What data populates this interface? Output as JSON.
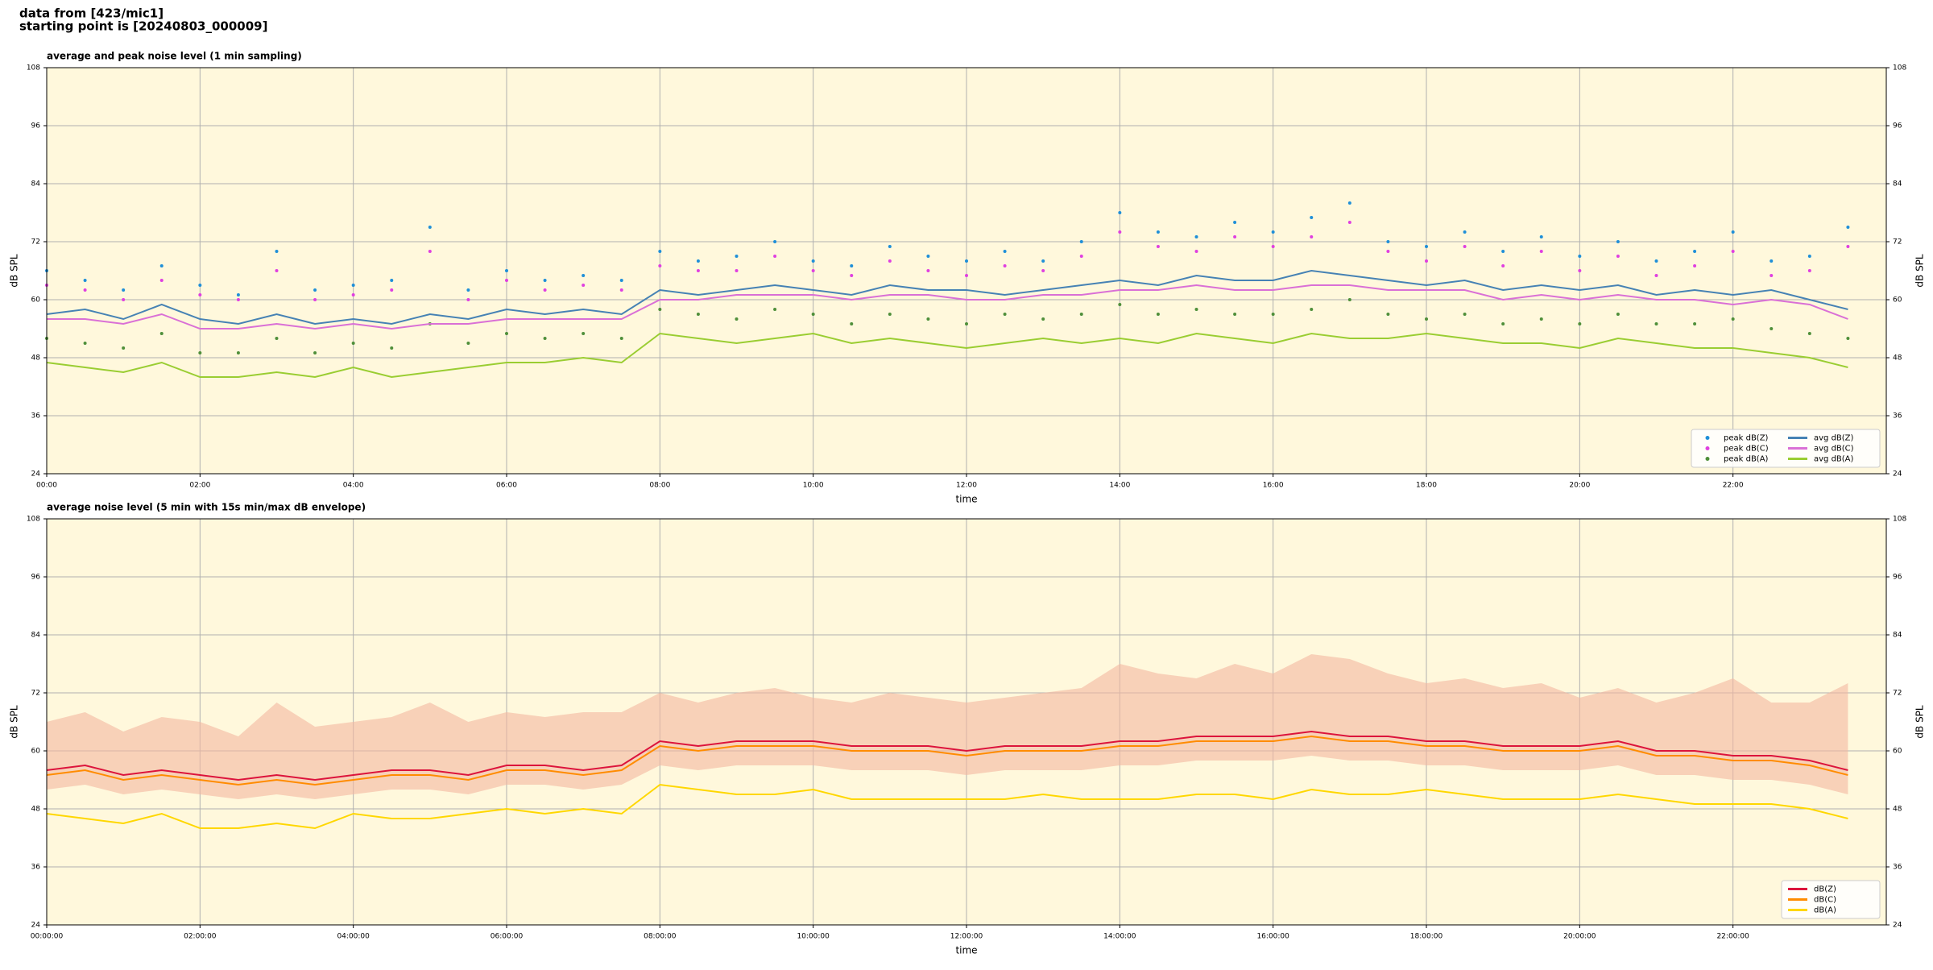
{
  "header": [
    "data from [423/mic1]",
    "starting point is [20240803_000009]"
  ],
  "chart_data": [
    {
      "type": "line",
      "title": "average and peak noise level (1 min sampling)",
      "x_label": "time",
      "y_label": "dB SPL",
      "background": "#fff8dc",
      "grid": true,
      "legend": "lower right",
      "legend_columns": 2,
      "x": [
        0,
        0.5,
        1,
        1.5,
        2,
        2.5,
        3,
        3.5,
        4,
        4.5,
        5,
        5.5,
        6,
        6.5,
        7,
        7.5,
        8,
        8.5,
        9,
        9.5,
        10,
        10.5,
        11,
        11.5,
        12,
        12.5,
        13,
        13.5,
        14,
        14.5,
        15,
        15.5,
        16,
        16.5,
        17,
        17.5,
        18,
        18.5,
        19,
        19.5,
        20,
        20.5,
        21,
        21.5,
        22,
        22.5,
        23,
        23.5
      ],
      "xlim": [
        0,
        24
      ],
      "xticks": [
        {
          "value": 0,
          "label": "00:00"
        },
        {
          "value": 2,
          "label": "02:00"
        },
        {
          "value": 4,
          "label": "04:00"
        },
        {
          "value": 6,
          "label": "06:00"
        },
        {
          "value": 8,
          "label": "08:00"
        },
        {
          "value": 10,
          "label": "10:00"
        },
        {
          "value": 12,
          "label": "12:00"
        },
        {
          "value": 14,
          "label": "14:00"
        },
        {
          "value": 16,
          "label": "16:00"
        },
        {
          "value": 18,
          "label": "18:00"
        },
        {
          "value": 20,
          "label": "20:00"
        },
        {
          "value": 22,
          "label": "22:00"
        }
      ],
      "ylim": [
        24,
        108
      ],
      "yticks": [
        24,
        36,
        48,
        60,
        72,
        84,
        96,
        108
      ],
      "series": [
        {
          "name": "peak dB(Z)",
          "kind": "scatter",
          "color": "#1f8fd8",
          "values": [
            66,
            64,
            62,
            67,
            63,
            61,
            70,
            62,
            63,
            64,
            75,
            62,
            66,
            64,
            65,
            64,
            70,
            68,
            69,
            72,
            68,
            67,
            71,
            69,
            68,
            70,
            68,
            72,
            78,
            74,
            73,
            76,
            74,
            77,
            80,
            72,
            71,
            74,
            70,
            73,
            69,
            72,
            68,
            70,
            74,
            68,
            69,
            75
          ]
        },
        {
          "name": "peak dB(C)",
          "kind": "scatter",
          "color": "#e040e0",
          "values": [
            63,
            62,
            60,
            64,
            61,
            60,
            66,
            60,
            61,
            62,
            70,
            60,
            64,
            62,
            63,
            62,
            67,
            66,
            66,
            69,
            66,
            65,
            68,
            66,
            65,
            67,
            66,
            69,
            74,
            71,
            70,
            73,
            71,
            73,
            76,
            70,
            68,
            71,
            67,
            70,
            66,
            69,
            65,
            67,
            70,
            65,
            66,
            71
          ]
        },
        {
          "name": "peak dB(A)",
          "kind": "scatter",
          "color": "#4f8f3a",
          "values": [
            52,
            51,
            50,
            53,
            49,
            49,
            52,
            49,
            51,
            50,
            55,
            51,
            53,
            52,
            53,
            52,
            58,
            57,
            56,
            58,
            57,
            55,
            57,
            56,
            55,
            57,
            56,
            57,
            59,
            57,
            58,
            57,
            57,
            58,
            60,
            57,
            56,
            57,
            55,
            56,
            55,
            57,
            55,
            55,
            56,
            54,
            53,
            52
          ]
        },
        {
          "name": "avg dB(Z)",
          "kind": "line",
          "color": "#4682b4",
          "values": [
            57,
            58,
            56,
            59,
            56,
            55,
            57,
            55,
            56,
            55,
            57,
            56,
            58,
            57,
            58,
            57,
            62,
            61,
            62,
            63,
            62,
            61,
            63,
            62,
            62,
            61,
            62,
            63,
            64,
            63,
            65,
            64,
            64,
            66,
            65,
            64,
            63,
            64,
            62,
            63,
            62,
            63,
            61,
            62,
            61,
            62,
            60,
            58
          ]
        },
        {
          "name": "avg dB(C)",
          "kind": "line",
          "color": "#da70d6",
          "values": [
            56,
            56,
            55,
            57,
            54,
            54,
            55,
            54,
            55,
            54,
            55,
            55,
            56,
            56,
            56,
            56,
            60,
            60,
            61,
            61,
            61,
            60,
            61,
            61,
            60,
            60,
            61,
            61,
            62,
            62,
            63,
            62,
            62,
            63,
            63,
            62,
            62,
            62,
            60,
            61,
            60,
            61,
            60,
            60,
            59,
            60,
            59,
            56
          ]
        },
        {
          "name": "avg dB(A)",
          "kind": "line",
          "color": "#9acd32",
          "values": [
            47,
            46,
            45,
            47,
            44,
            44,
            45,
            44,
            46,
            44,
            45,
            46,
            47,
            47,
            48,
            47,
            53,
            52,
            51,
            52,
            53,
            51,
            52,
            51,
            50,
            51,
            52,
            51,
            52,
            51,
            53,
            52,
            51,
            53,
            52,
            52,
            53,
            52,
            51,
            51,
            50,
            52,
            51,
            50,
            50,
            49,
            48,
            46
          ]
        }
      ]
    },
    {
      "type": "line",
      "title": "average noise level (5 min with 15s min/max dB envelope)",
      "x_label": "time",
      "y_label": "dB SPL",
      "background": "#fff8dc",
      "grid": true,
      "legend": "lower right",
      "legend_columns": 1,
      "x": [
        0,
        0.5,
        1,
        1.5,
        2,
        2.5,
        3,
        3.5,
        4,
        4.5,
        5,
        5.5,
        6,
        6.5,
        7,
        7.5,
        8,
        8.5,
        9,
        9.5,
        10,
        10.5,
        11,
        11.5,
        12,
        12.5,
        13,
        13.5,
        14,
        14.5,
        15,
        15.5,
        16,
        16.5,
        17,
        17.5,
        18,
        18.5,
        19,
        19.5,
        20,
        20.5,
        21,
        21.5,
        22,
        22.5,
        23,
        23.5
      ],
      "xlim": [
        0,
        24
      ],
      "xticks": [
        {
          "value": 0,
          "label": "00:00:00"
        },
        {
          "value": 2,
          "label": "02:00:00"
        },
        {
          "value": 4,
          "label": "04:00:00"
        },
        {
          "value": 6,
          "label": "06:00:00"
        },
        {
          "value": 8,
          "label": "08:00:00"
        },
        {
          "value": 10,
          "label": "10:00:00"
        },
        {
          "value": 12,
          "label": "12:00:00"
        },
        {
          "value": 14,
          "label": "14:00:00"
        },
        {
          "value": 16,
          "label": "16:00:00"
        },
        {
          "value": 18,
          "label": "18:00:00"
        },
        {
          "value": 20,
          "label": "20:00:00"
        },
        {
          "value": 22,
          "label": "22:00:00"
        }
      ],
      "ylim": [
        24,
        108
      ],
      "yticks": [
        24,
        36,
        48,
        60,
        72,
        84,
        96,
        108
      ],
      "envelope": {
        "color": "#f4b8a0",
        "max": [
          66,
          68,
          64,
          67,
          66,
          63,
          70,
          65,
          66,
          67,
          70,
          66,
          68,
          67,
          68,
          68,
          72,
          70,
          72,
          73,
          71,
          70,
          72,
          71,
          70,
          71,
          72,
          73,
          78,
          76,
          75,
          78,
          76,
          80,
          79,
          76,
          74,
          75,
          73,
          74,
          71,
          73,
          70,
          72,
          75,
          70,
          70,
          74
        ],
        "min": [
          52,
          53,
          51,
          52,
          51,
          50,
          51,
          50,
          51,
          52,
          52,
          51,
          53,
          53,
          52,
          53,
          57,
          56,
          57,
          57,
          57,
          56,
          56,
          56,
          55,
          56,
          56,
          56,
          57,
          57,
          58,
          58,
          58,
          59,
          58,
          58,
          57,
          57,
          56,
          56,
          56,
          57,
          55,
          55,
          54,
          54,
          53,
          51
        ]
      },
      "series": [
        {
          "name": "dB(Z)",
          "kind": "line",
          "color": "#dc143c",
          "values": [
            56,
            57,
            55,
            56,
            55,
            54,
            55,
            54,
            55,
            56,
            56,
            55,
            57,
            57,
            56,
            57,
            62,
            61,
            62,
            62,
            62,
            61,
            61,
            61,
            60,
            61,
            61,
            61,
            62,
            62,
            63,
            63,
            63,
            64,
            63,
            63,
            62,
            62,
            61,
            61,
            61,
            62,
            60,
            60,
            59,
            59,
            58,
            56
          ]
        },
        {
          "name": "dB(C)",
          "kind": "line",
          "color": "#ff8c00",
          "values": [
            55,
            56,
            54,
            55,
            54,
            53,
            54,
            53,
            54,
            55,
            55,
            54,
            56,
            56,
            55,
            56,
            61,
            60,
            61,
            61,
            61,
            60,
            60,
            60,
            59,
            60,
            60,
            60,
            61,
            61,
            62,
            62,
            62,
            63,
            62,
            62,
            61,
            61,
            60,
            60,
            60,
            61,
            59,
            59,
            58,
            58,
            57,
            55
          ]
        },
        {
          "name": "dB(A)",
          "kind": "line",
          "color": "#ffd700",
          "values": [
            47,
            46,
            45,
            47,
            44,
            44,
            45,
            44,
            47,
            46,
            46,
            47,
            48,
            47,
            48,
            47,
            53,
            52,
            51,
            51,
            52,
            50,
            50,
            50,
            50,
            50,
            51,
            50,
            50,
            50,
            51,
            51,
            50,
            52,
            51,
            51,
            52,
            51,
            50,
            50,
            50,
            51,
            50,
            49,
            49,
            49,
            48,
            46
          ]
        }
      ]
    }
  ]
}
